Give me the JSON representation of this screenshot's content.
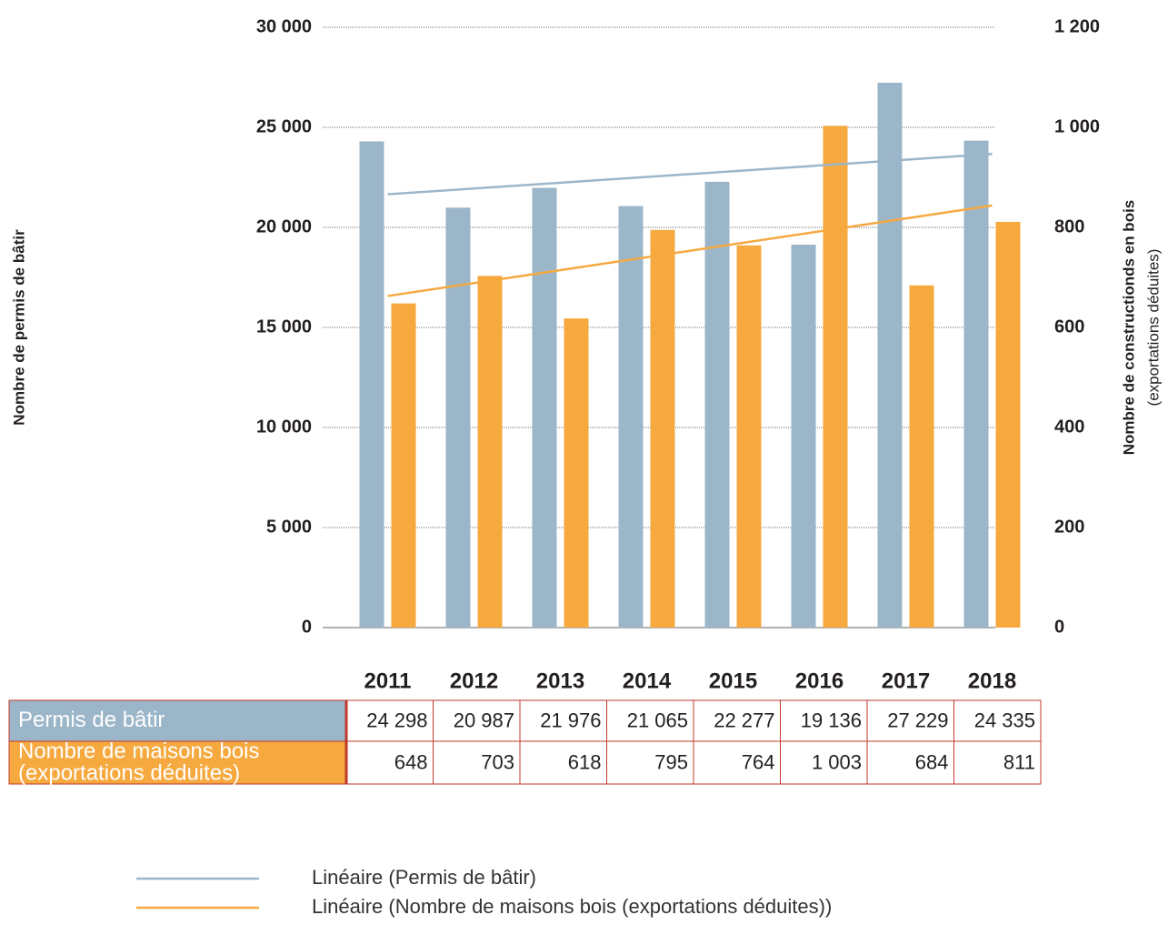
{
  "chart_data": {
    "type": "bar",
    "y_label": "Nombre de permis de bâtir",
    "y2_label": "Nombre de constructionds en bois",
    "y2_sublabel": "(exportations déduites)",
    "categories": [
      "2011",
      "2012",
      "2013",
      "2014",
      "2015",
      "2016",
      "2017",
      "2018"
    ],
    "series": [
      {
        "name": "Permis de bâtir",
        "color": "#9cb6c9",
        "values": [
          24298,
          20987,
          21976,
          21065,
          22277,
          19136,
          27229,
          24335
        ],
        "value_labels": [
          "24 298",
          "20 987",
          "21 976",
          "21 065",
          "22 277",
          "19 136",
          "27 229",
          "24 335"
        ],
        "trendline": {
          "name": "Linéaire (Permis de bâtir)",
          "color": "#9cb6c9"
        }
      },
      {
        "name": "Nombre de maisons bois (exportations déduites)",
        "color": "#f5a93f",
        "axis": "y2",
        "values": [
          648,
          703,
          618,
          795,
          764,
          1003,
          684,
          811
        ],
        "value_labels": [
          "648",
          "703",
          "618",
          "795",
          "764",
          "1 003",
          "684",
          "811"
        ],
        "trendline": {
          "name": "Linéaire (Nombre de maisons bois (exportations déduites))",
          "color": "#f5a93f"
        }
      }
    ],
    "ylim": [
      0,
      30000
    ],
    "yticks": [
      0,
      {
        "value": 5000,
        "label": "5 000"
      },
      {
        "value": 10000,
        "label": "10 000"
      },
      {
        "value": 15000,
        "label": "15 000"
      },
      {
        "value": 20000,
        "label": "20 000"
      },
      {
        "value": 25000,
        "label": "25 000"
      },
      {
        "value": 30000,
        "label": "30 000"
      }
    ],
    "y2lim": [
      0,
      1200
    ],
    "y2ticks": [
      0,
      200,
      400,
      600,
      800,
      {
        "value": 1000,
        "label": "1 000"
      },
      {
        "value": 1200,
        "label": "1 200"
      }
    ],
    "grid": true
  }
}
